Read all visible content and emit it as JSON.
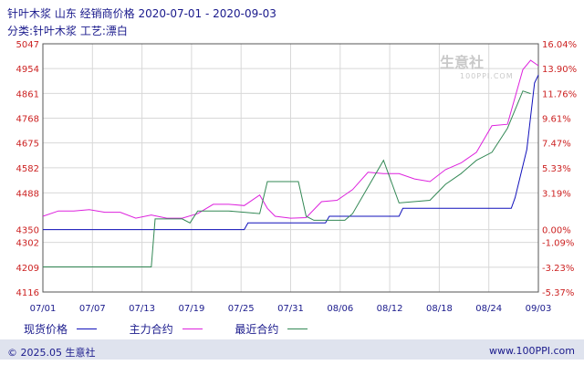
{
  "header": {
    "title": "针叶木浆 山东 经销商价格 2020-07-01 - 2020-09-03",
    "subtitle": "分类:针叶木浆 工艺:漂白"
  },
  "watermark": {
    "brand": "生意社",
    "url": "100PPI.COM"
  },
  "footer": {
    "copyright": "© 2025.05 生意社",
    "site": "www.100PPI.com"
  },
  "colors": {
    "spot": "#1111bb",
    "main": "#dd22dd",
    "recent": "#338855",
    "grid": "#d8d8d8",
    "frame": "#555555",
    "tick_left": "#cc2222",
    "tick_right": "#cc2222",
    "tick_x": "#1a1a8c",
    "footer_bar": "#dfe3ee"
  },
  "chart_data": {
    "type": "line",
    "title": "针叶木浆 山东 经销商价格 2020-07-01 - 2020-09-03",
    "xlabel": "",
    "ylabel": "",
    "x_ticks": [
      "07/01",
      "07/07",
      "07/13",
      "07/19",
      "07/25",
      "07/31",
      "08/06",
      "08/12",
      "08/18",
      "08/24",
      "09/03"
    ],
    "y_left_ticks": [
      5047,
      4954,
      4861,
      4768,
      4675,
      4582,
      4488,
      4350,
      4302,
      4209,
      4116
    ],
    "y_right_ticks": [
      "16.04%",
      "13.90%",
      "11.76%",
      "9.61%",
      "7.47%",
      "5.33%",
      "3.19%",
      "0.00%",
      "-1.09%",
      "-3.23%",
      "-5.37%"
    ],
    "ylim": [
      4116,
      5047
    ],
    "grid": true,
    "legend_position": "bottom-left",
    "x_range": [
      0,
      64
    ],
    "series": [
      {
        "name": "现货价格",
        "color_key": "spot",
        "x": [
          0,
          26,
          26.5,
          36.5,
          37,
          46,
          46.5,
          60.5,
          61,
          62.5,
          63.5,
          64
        ],
        "y": [
          4350,
          4350,
          4375,
          4375,
          4400,
          4400,
          4430,
          4430,
          4470,
          4650,
          4900,
          4930
        ]
      },
      {
        "name": "主力合约",
        "color_key": "main",
        "x": [
          0,
          2,
          4,
          6,
          8,
          10,
          12,
          14,
          16,
          18,
          20,
          22,
          24,
          26,
          28,
          29,
          30,
          32,
          34,
          36,
          38,
          40,
          42,
          44,
          46,
          48,
          50,
          52,
          54,
          56,
          58,
          60,
          62,
          63,
          64
        ],
        "y": [
          4400,
          4420,
          4420,
          4425,
          4415,
          4415,
          4393,
          4405,
          4393,
          4393,
          4410,
          4445,
          4445,
          4440,
          4480,
          4430,
          4400,
          4393,
          4395,
          4455,
          4460,
          4500,
          4565,
          4560,
          4560,
          4540,
          4530,
          4575,
          4600,
          4640,
          4740,
          4745,
          4950,
          4985,
          4965
        ]
      },
      {
        "name": "最近合约",
        "color_key": "recent",
        "x": [
          0,
          14,
          14.5,
          18,
          19,
          20,
          22,
          24,
          26,
          28,
          29,
          33,
          34,
          35,
          36,
          39,
          40,
          44,
          46,
          50,
          52,
          54,
          56,
          58,
          60,
          62,
          63
        ],
        "y": [
          4210,
          4210,
          4390,
          4390,
          4375,
          4420,
          4420,
          4420,
          4415,
          4410,
          4530,
          4530,
          4400,
          4385,
          4385,
          4385,
          4410,
          4610,
          4450,
          4460,
          4520,
          4560,
          4610,
          4640,
          4730,
          4870,
          4860
        ]
      }
    ]
  }
}
